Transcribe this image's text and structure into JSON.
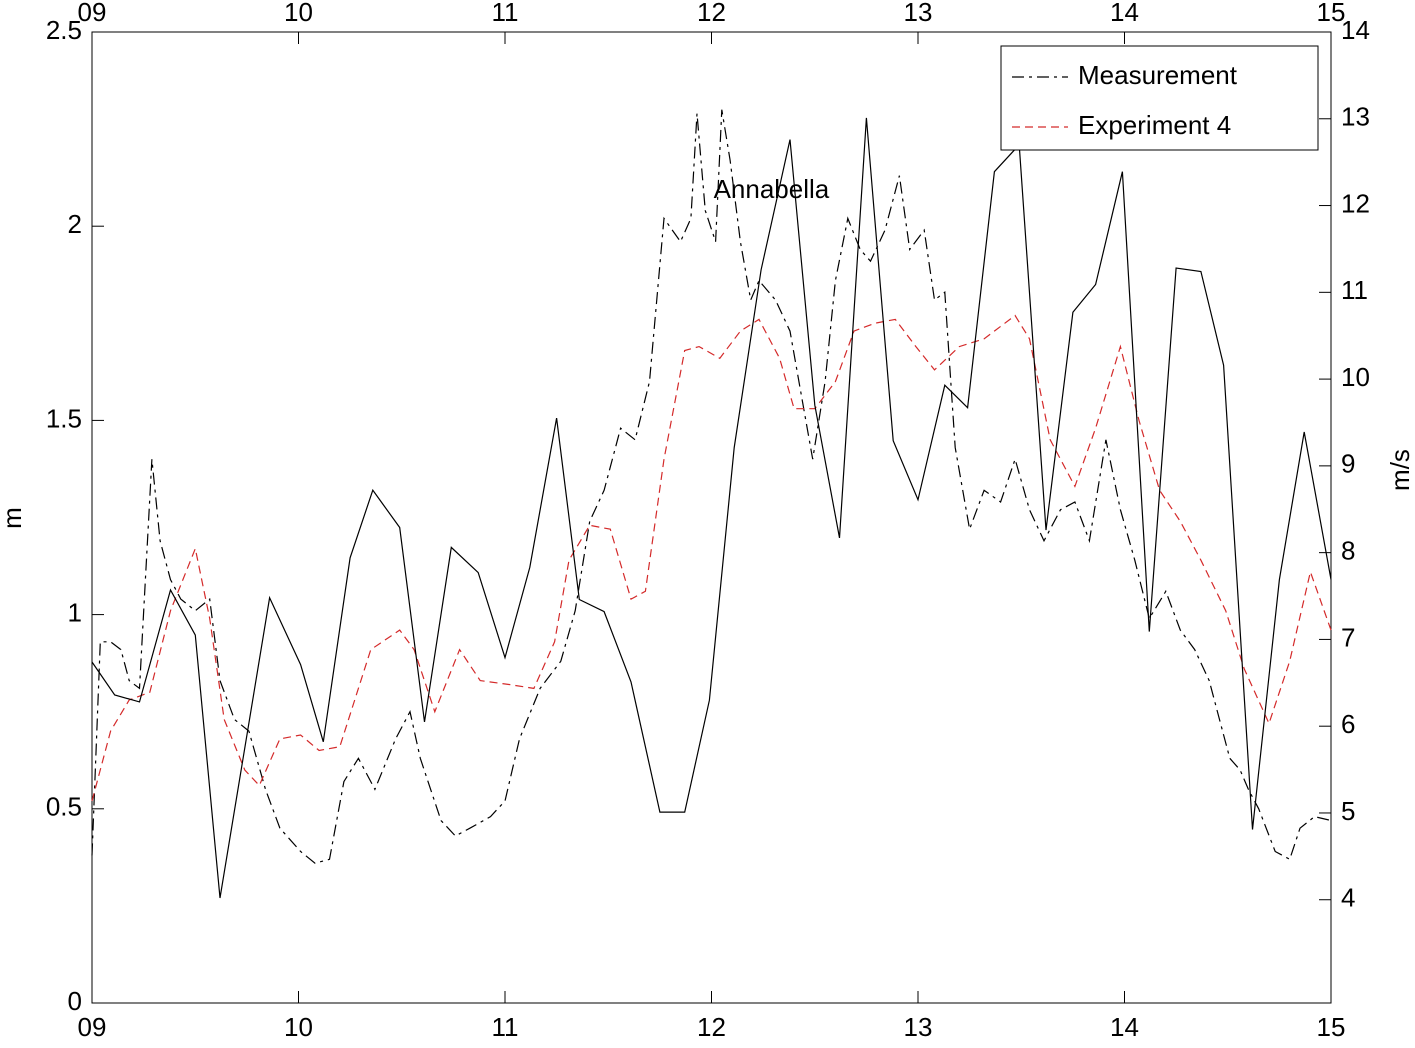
{
  "chart_data": {
    "type": "line",
    "ylabel": "m",
    "y2label": "m/s",
    "xlim": [
      9,
      15
    ],
    "xticks": [
      {
        "value": 9,
        "label": "09"
      },
      10,
      11,
      12,
      13,
      14,
      15
    ],
    "ylim": [
      0,
      2.5
    ],
    "yticks": [
      0,
      0.5,
      1,
      1.5,
      2,
      2.5
    ],
    "y2lim": [
      2.81,
      14
    ],
    "y2ticks": [
      4,
      5,
      6,
      7,
      8,
      9,
      10,
      11,
      12,
      13,
      14
    ],
    "legend": "upper right",
    "grid": false,
    "annotations": [
      {
        "text": "Annabella",
        "x": 12.01,
        "y": 2.09
      }
    ],
    "series": [
      {
        "name": "Measurement",
        "color": "#000000",
        "style": "dash-dot",
        "x": [
          9.0,
          9.04,
          9.09,
          9.14,
          9.18,
          9.23,
          9.29,
          9.33,
          9.38,
          9.43,
          9.5,
          9.57,
          9.62,
          9.69,
          9.76,
          9.84,
          9.91,
          10.01,
          10.08,
          10.15,
          10.22,
          10.29,
          10.37,
          10.47,
          10.54,
          10.59,
          10.69,
          10.76,
          10.83,
          10.93,
          11.0,
          11.07,
          11.17,
          11.27,
          11.34,
          11.41,
          11.48,
          11.56,
          11.63,
          11.7,
          11.77,
          11.85,
          11.9,
          11.93,
          11.97,
          12.02,
          12.05,
          12.09,
          12.14,
          12.19,
          12.23,
          12.31,
          12.38,
          12.43,
          12.49,
          12.55,
          12.6,
          12.66,
          12.72,
          12.77,
          12.84,
          12.91,
          12.96,
          13.03,
          13.08,
          13.13,
          13.18,
          13.25,
          13.32,
          13.4,
          13.47,
          13.54,
          13.61,
          13.69,
          13.76,
          13.83,
          13.91,
          13.98,
          14.05,
          14.12,
          14.2,
          14.27,
          14.34,
          14.41,
          14.46,
          14.51,
          14.56,
          14.6,
          14.65,
          14.73,
          14.8,
          14.85,
          14.92,
          15.0
        ],
        "values": [
          0.38,
          0.93,
          0.93,
          0.91,
          0.83,
          0.81,
          1.4,
          1.19,
          1.09,
          1.04,
          1.01,
          1.04,
          0.83,
          0.73,
          0.7,
          0.55,
          0.45,
          0.39,
          0.36,
          0.37,
          0.57,
          0.63,
          0.55,
          0.68,
          0.75,
          0.63,
          0.47,
          0.43,
          0.45,
          0.48,
          0.52,
          0.68,
          0.81,
          0.88,
          1.01,
          1.24,
          1.32,
          1.48,
          1.45,
          1.6,
          2.02,
          1.96,
          2.02,
          2.29,
          2.04,
          1.96,
          2.3,
          2.17,
          1.96,
          1.81,
          1.86,
          1.81,
          1.73,
          1.58,
          1.4,
          1.6,
          1.86,
          2.02,
          1.94,
          1.91,
          1.99,
          2.13,
          1.94,
          1.99,
          1.81,
          1.83,
          1.43,
          1.22,
          1.32,
          1.29,
          1.4,
          1.27,
          1.19,
          1.27,
          1.29,
          1.19,
          1.45,
          1.27,
          1.14,
          0.99,
          1.06,
          0.96,
          0.91,
          0.83,
          0.73,
          0.63,
          0.6,
          0.55,
          0.5,
          0.39,
          0.37,
          0.45,
          0.48,
          0.47
        ]
      },
      {
        "name": "Experiment 4",
        "color": "#d42a2a",
        "style": "dashed",
        "x": [
          9.0,
          9.09,
          9.18,
          9.28,
          9.38,
          9.5,
          9.57,
          9.64,
          9.74,
          9.81,
          9.91,
          10.01,
          10.1,
          10.2,
          10.35,
          10.49,
          10.56,
          10.66,
          10.78,
          10.88,
          11.02,
          11.14,
          11.24,
          11.31,
          11.41,
          11.51,
          11.61,
          11.68,
          11.77,
          11.87,
          11.94,
          12.04,
          12.14,
          12.23,
          12.33,
          12.4,
          12.5,
          12.6,
          12.69,
          12.79,
          12.89,
          12.99,
          13.08,
          13.2,
          13.32,
          13.47,
          13.54,
          13.64,
          13.76,
          13.86,
          13.98,
          14.07,
          14.17,
          14.27,
          14.37,
          14.49,
          14.58,
          14.7,
          14.8,
          14.9,
          15.0
        ],
        "values": [
          0.52,
          0.7,
          0.78,
          0.8,
          1.01,
          1.17,
          0.99,
          0.73,
          0.6,
          0.56,
          0.68,
          0.69,
          0.65,
          0.66,
          0.91,
          0.96,
          0.91,
          0.75,
          0.91,
          0.83,
          0.82,
          0.81,
          0.93,
          1.14,
          1.23,
          1.22,
          1.04,
          1.06,
          1.4,
          1.68,
          1.69,
          1.66,
          1.73,
          1.76,
          1.66,
          1.53,
          1.53,
          1.6,
          1.73,
          1.75,
          1.76,
          1.69,
          1.63,
          1.69,
          1.71,
          1.77,
          1.71,
          1.45,
          1.33,
          1.48,
          1.69,
          1.5,
          1.32,
          1.24,
          1.14,
          1.01,
          0.86,
          0.72,
          0.88,
          1.11,
          0.96
        ]
      },
      {
        "color": "#000000",
        "style": "solid",
        "axis": "y2",
        "x": [
          9.0,
          9.11,
          9.23,
          9.38,
          9.5,
          9.62,
          9.86,
          10.01,
          10.12,
          10.25,
          10.36,
          10.49,
          10.61,
          10.74,
          10.87,
          11.0,
          11.12,
          11.25,
          11.36,
          11.48,
          11.61,
          11.75,
          11.87,
          11.99,
          12.11,
          12.24,
          12.38,
          12.5,
          12.62,
          12.75,
          12.88,
          13.0,
          13.13,
          13.24,
          13.37,
          13.49,
          13.62,
          13.75,
          13.86,
          13.99,
          14.12,
          14.25,
          14.37,
          14.48,
          14.62,
          14.75,
          14.87,
          15.0
        ],
        "values": [
          6.74,
          6.36,
          6.28,
          7.57,
          7.05,
          4.02,
          7.48,
          6.71,
          5.82,
          7.94,
          8.72,
          8.29,
          6.05,
          8.06,
          7.77,
          6.79,
          7.83,
          9.55,
          7.46,
          7.32,
          6.51,
          5.01,
          5.01,
          6.3,
          9.21,
          11.26,
          12.76,
          9.7,
          8.17,
          13.01,
          9.29,
          8.61,
          9.93,
          9.67,
          12.39,
          12.7,
          8.26,
          10.77,
          11.09,
          12.39,
          7.09,
          11.28,
          11.24,
          10.16,
          4.81,
          7.69,
          9.39,
          7.69
        ]
      }
    ]
  }
}
